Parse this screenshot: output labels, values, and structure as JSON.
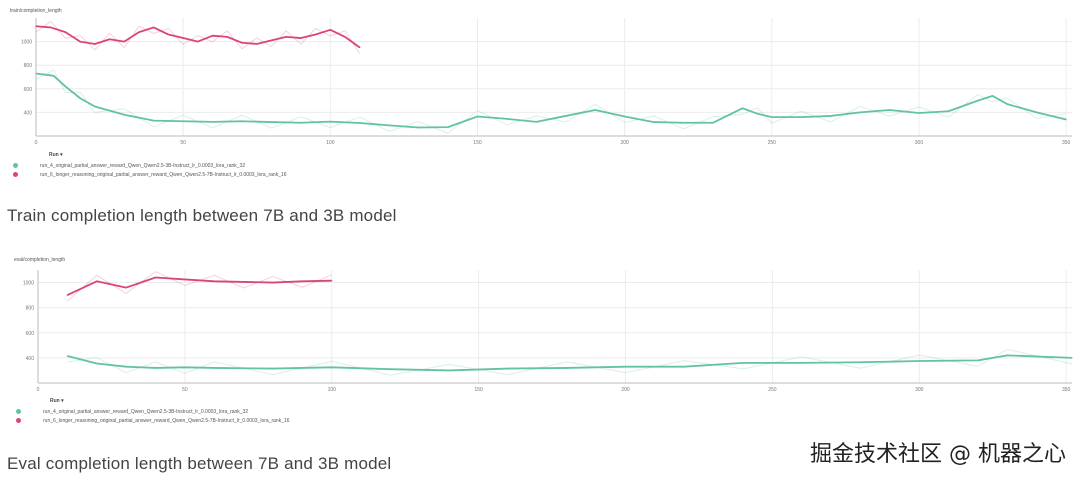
{
  "chart_data": [
    {
      "type": "line",
      "title": "train/completion_length",
      "x_ticks": [
        0,
        50,
        100,
        150,
        200,
        250,
        300,
        350
      ],
      "y_ticks": [
        400,
        600,
        800,
        1000
      ],
      "xlim": [
        0,
        352
      ],
      "ylim": [
        200,
        1200
      ],
      "legend_title": "Run",
      "series": [
        {
          "name": "run_4_original_partial_answer_reward_Qwen_Qwen2.5-3B-Instruct_lr_0.0003_lora_rank_32",
          "color": "#63c2a0",
          "x": [
            0,
            6,
            10,
            15,
            20,
            30,
            40,
            50,
            60,
            70,
            80,
            90,
            100,
            110,
            120,
            130,
            140,
            150,
            160,
            170,
            180,
            190,
            200,
            210,
            220,
            230,
            240,
            245,
            250,
            260,
            270,
            280,
            290,
            300,
            310,
            320,
            325,
            330,
            340,
            350
          ],
          "y": [
            730,
            710,
            620,
            520,
            450,
            380,
            330,
            325,
            320,
            325,
            318,
            312,
            322,
            310,
            290,
            272,
            275,
            365,
            345,
            320,
            370,
            420,
            365,
            318,
            312,
            312,
            435,
            390,
            360,
            360,
            370,
            400,
            420,
            395,
            410,
            500,
            540,
            470,
            400,
            340
          ]
        },
        {
          "name": "run_6_longer_reasoning_original_partial_answer_reward_Qwen_Qwen2.5-7B-Instruct_lr_0.0003_lora_rank_16",
          "color": "#d9447f",
          "x": [
            0,
            5,
            10,
            15,
            20,
            25,
            30,
            35,
            40,
            45,
            50,
            55,
            60,
            65,
            70,
            75,
            80,
            85,
            90,
            95,
            100,
            105,
            110
          ],
          "y": [
            1130,
            1120,
            1080,
            1000,
            980,
            1020,
            1000,
            1080,
            1120,
            1060,
            1030,
            1000,
            1050,
            1040,
            990,
            980,
            1010,
            1040,
            1030,
            1060,
            1100,
            1040,
            950
          ]
        }
      ]
    },
    {
      "type": "line",
      "title": "eval/completion_length",
      "x_ticks": [
        0,
        50,
        100,
        150,
        200,
        250,
        300,
        350
      ],
      "y_ticks": [
        400,
        600,
        800,
        1000
      ],
      "xlim": [
        0,
        352
      ],
      "ylim": [
        200,
        1100
      ],
      "legend_title": "Run",
      "series": [
        {
          "name": "run_4_original_partial_answer_reward_Qwen_Qwen2.5-3B-Instruct_lr_0.0003_lora_rank_32",
          "color": "#63c2a0",
          "x": [
            10,
            20,
            30,
            40,
            50,
            60,
            80,
            100,
            120,
            140,
            160,
            180,
            200,
            220,
            240,
            260,
            280,
            300,
            320,
            330,
            352
          ],
          "y": [
            415,
            355,
            330,
            320,
            325,
            320,
            315,
            325,
            310,
            300,
            315,
            320,
            330,
            330,
            360,
            360,
            365,
            375,
            380,
            420,
            400
          ]
        },
        {
          "name": "run_6_longer_reasoning_original_partial_answer_reward_Qwen_Qwen2.5-7B-Instruct_lr_0.0003_lora_rank_16",
          "color": "#d9447f",
          "x": [
            10,
            20,
            30,
            40,
            50,
            60,
            70,
            80,
            90,
            100
          ],
          "y": [
            900,
            1010,
            960,
            1040,
            1025,
            1010,
            1005,
            1000,
            1010,
            1015
          ]
        }
      ]
    }
  ],
  "captions": {
    "train": "Train completion length between 7B and 3B model",
    "eval": "Eval completion length between 7B and 3B model"
  },
  "watermark": "掘金技术社区 @ 机器之心"
}
